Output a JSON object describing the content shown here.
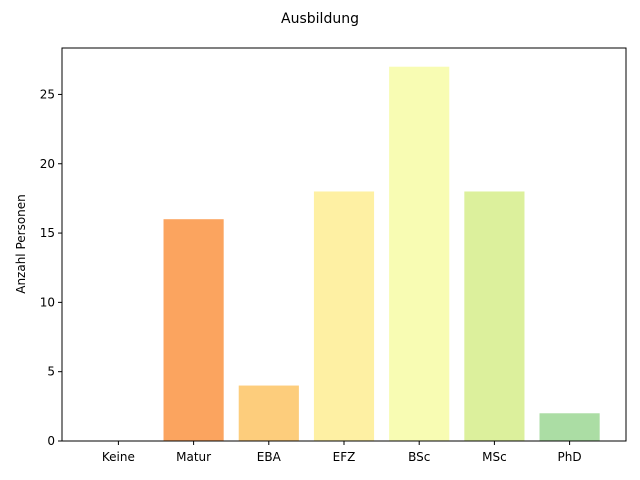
{
  "chart_data": {
    "type": "bar",
    "title": "Ausbildung",
    "xlabel": "",
    "ylabel": "Anzahl Personen",
    "categories": [
      "Keine",
      "Matur",
      "EBA",
      "EFZ",
      "BSc",
      "MSc",
      "PhD"
    ],
    "values": [
      0,
      16,
      4,
      18,
      27,
      18,
      2
    ],
    "colors": [
      "#d7191c",
      "#fba45f",
      "#fdcd7c",
      "#fef0a3",
      "#f8fcb3",
      "#dcf09c",
      "#abdda4"
    ],
    "yticks": [
      0,
      5,
      10,
      15,
      20,
      25
    ],
    "ylim": [
      0,
      28.35
    ],
    "grid": false,
    "legend": "none"
  }
}
